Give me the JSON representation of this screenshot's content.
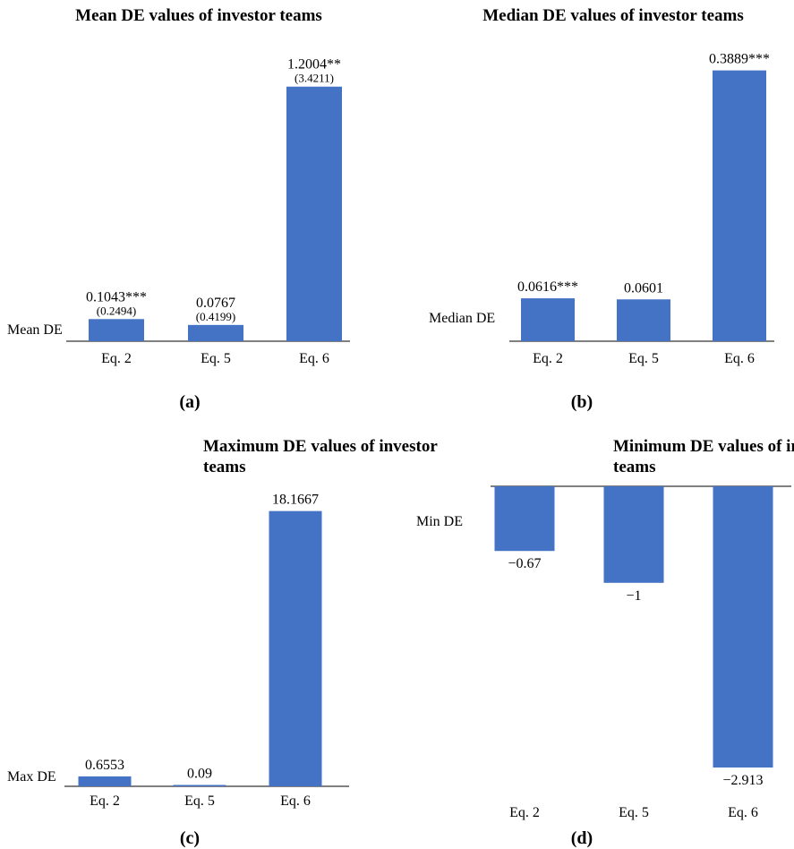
{
  "chart_data": [
    {
      "type": "bar",
      "title": "Mean DE values of investor teams",
      "panel_label": "(a)",
      "ylabel": "Mean DE",
      "categories": [
        "Eq. 2",
        "Eq. 5",
        "Eq. 6"
      ],
      "series": [
        {
          "values": [
            0.1043,
            0.0767,
            1.2004
          ]
        }
      ],
      "data_labels": [
        "0.1043***",
        "0.0767",
        "1.2004**"
      ],
      "sub_labels": [
        "(0.2494)",
        "(0.4199)",
        "(3.4211)"
      ],
      "ylim": [
        0,
        1.25
      ]
    },
    {
      "type": "bar",
      "title": "Median DE values of investor teams",
      "panel_label": "(b)",
      "ylabel": "Median DE",
      "categories": [
        "Eq. 2",
        "Eq. 5",
        "Eq. 6"
      ],
      "series": [
        {
          "values": [
            0.0616,
            0.0601,
            0.3889
          ]
        }
      ],
      "data_labels": [
        "0.0616***",
        "0.0601",
        "0.3889***"
      ],
      "sub_labels": [],
      "ylim": [
        0,
        0.4
      ]
    },
    {
      "type": "bar",
      "title": "Maximum DE values of investor teams",
      "panel_label": "(c)",
      "ylabel": "Max DE",
      "categories": [
        "Eq. 2",
        "Eq. 5",
        "Eq. 6"
      ],
      "series": [
        {
          "values": [
            0.6553,
            0.09,
            18.1667
          ]
        }
      ],
      "data_labels": [
        "0.6553",
        "0.09",
        "18.1667"
      ],
      "sub_labels": [],
      "ylim": [
        0,
        18.5
      ]
    },
    {
      "type": "bar",
      "title": "Minimum DE values of investor teams",
      "panel_label": "(d)",
      "ylabel": "Min DE",
      "categories": [
        "Eq. 2",
        "Eq. 5",
        "Eq. 6"
      ],
      "series": [
        {
          "values": [
            -0.67,
            -1,
            -2.913
          ]
        }
      ],
      "data_labels": [
        "−0.67",
        "−1",
        "−2.913"
      ],
      "sub_labels": [],
      "ylim": [
        -2.95,
        0
      ]
    }
  ],
  "colors": {
    "bar": "#4472C4",
    "axis": "#000000"
  }
}
